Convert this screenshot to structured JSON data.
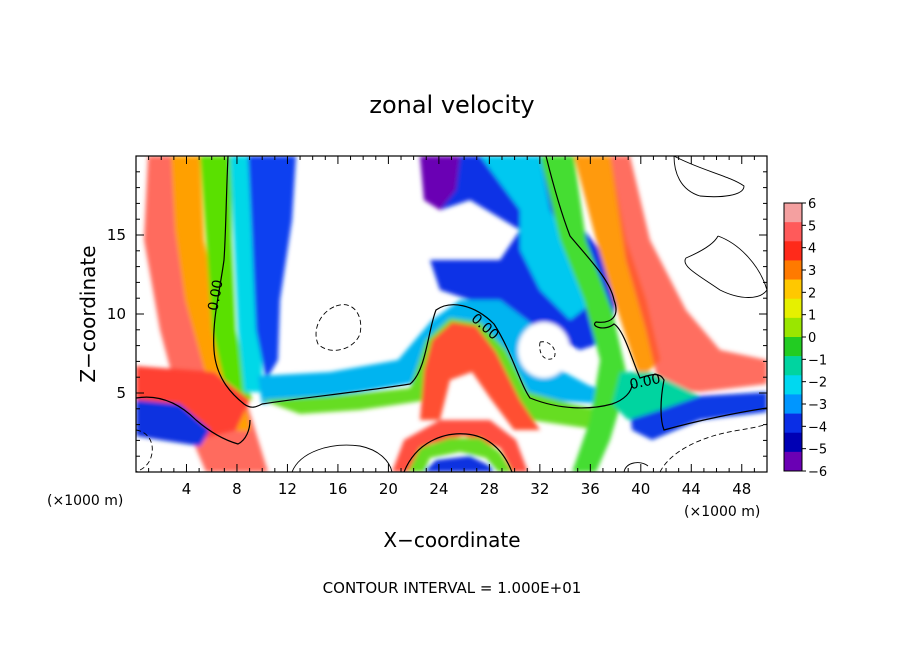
{
  "chart_data": {
    "type": "heatmap",
    "title": "zonal velocity",
    "xlabel": "X−coordinate",
    "ylabel": "Z−coordinate",
    "x_unit": "(×1000 m)",
    "z_unit": "(×1000 m)",
    "xlim": [
      0,
      50
    ],
    "ylim": [
      0,
      20
    ],
    "x_ticks": [
      4,
      8,
      12,
      16,
      20,
      24,
      28,
      32,
      36,
      40,
      44,
      48
    ],
    "y_ticks": [
      5,
      10,
      15
    ],
    "colorbar": {
      "levels": [
        6,
        5,
        4,
        3,
        2,
        1,
        0,
        -1,
        -2,
        -3,
        -4,
        -5,
        -6
      ],
      "tick_labels": [
        "6",
        "5",
        "4",
        "3",
        "2",
        "1",
        "0",
        "−1",
        "−2",
        "−3",
        "−4",
        "−5",
        "−6"
      ],
      "colors": [
        "#f4a0a0",
        "#ff5a5a",
        "#ff2a1a",
        "#ff7a00",
        "#ffc800",
        "#e6f000",
        "#9ae600",
        "#22cc22",
        "#00d4a0",
        "#00d8f0",
        "#0096ff",
        "#0a2ee6",
        "#0000b4",
        "#6a00b4"
      ]
    },
    "contour_labels": [
      "0.00",
      "0.00",
      "0.00"
    ],
    "annotation": "CONTOUR INTERVAL = 1.000E+01",
    "grid": false,
    "legend": "colorbar-right"
  }
}
